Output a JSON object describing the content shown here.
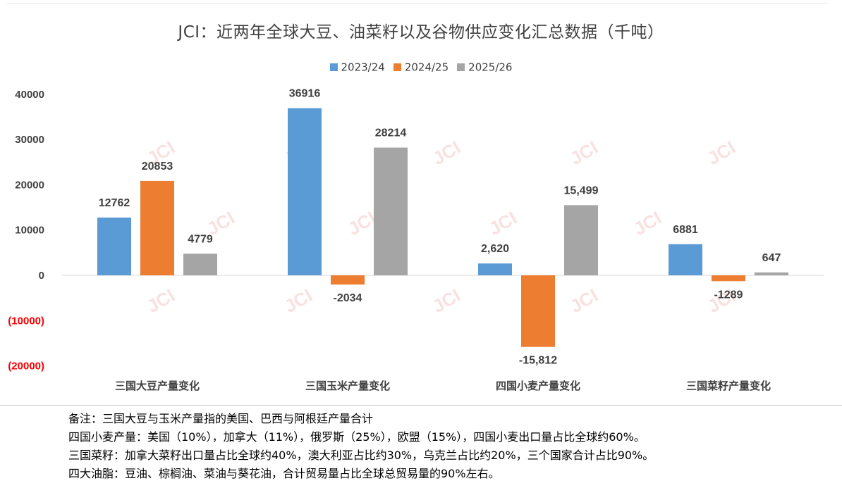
{
  "chart_data": {
    "type": "bar",
    "title": "JCI：近两年全球大豆、油菜籽以及谷物供应变化汇总数据（千吨）",
    "categories": [
      "三国大豆产量变化",
      "三国玉米产量变化",
      "四国小麦产量变化",
      "三国菜籽产量变化"
    ],
    "series": [
      {
        "name": "2023/24",
        "color": "#5b9bd5",
        "values": [
          12762,
          36916,
          2620,
          6881
        ],
        "labels": [
          "12762",
          "36916",
          "2,620",
          "6881"
        ]
      },
      {
        "name": "2024/25",
        "color": "#ed7d31",
        "values": [
          20853,
          -2034,
          -15812,
          -1289
        ],
        "labels": [
          "20853",
          "-2034",
          "-15,812",
          "-1289"
        ]
      },
      {
        "name": "2025/26",
        "color": "#a5a5a5",
        "values": [
          4779,
          28214,
          15499,
          647
        ],
        "labels": [
          "4779",
          "28214",
          "15,499",
          "647"
        ]
      }
    ],
    "ylim": [
      -20000,
      40000
    ],
    "yticks": [
      40000,
      30000,
      20000,
      10000,
      0,
      -10000,
      -20000
    ],
    "ytick_labels": [
      "40000",
      "30000",
      "20000",
      "10000",
      "0",
      "(10000)",
      "(20000)"
    ],
    "negative_tick_color": "#ff0000",
    "legend_position": "top-center",
    "watermark": "JCI",
    "xlabel": "",
    "ylabel": ""
  },
  "notes": [
    "备注：三国大豆与玉米产量指的美国、巴西与阿根廷产量合计",
    "四国小麦产量：美国（10%），加拿大（11%），俄罗斯（25%），欧盟（15%），四国小麦出口量占比全球约60%。",
    "三国菜籽：加拿大菜籽出口量占比全球约40%，澳大利亚占比约30%，乌克兰占比约20%，三个国家合计占比90%。",
    "四大油脂：豆油、棕榈油、菜油与葵花油，合计贸易量占比全球总贸易量的90%左右。"
  ]
}
